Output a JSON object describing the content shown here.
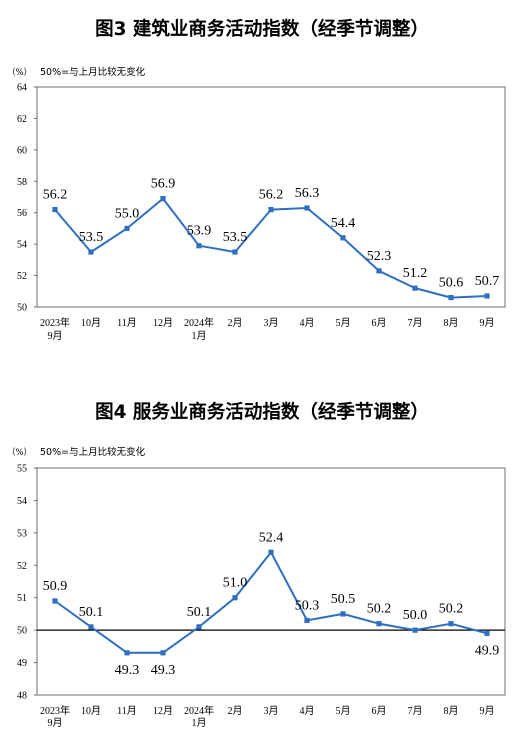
{
  "chart_data": [
    {
      "type": "line",
      "title": "图3 建筑业商务活动指数（经季节调整）",
      "ylabel": "（%）",
      "annotation": "50%=与上月比较无变化",
      "categories": [
        "2023年\n9月",
        "10月",
        "11月",
        "12月",
        "2024年\n1月",
        "2月",
        "3月",
        "4月",
        "5月",
        "6月",
        "7月",
        "8月",
        "9月"
      ],
      "values": [
        56.2,
        53.5,
        55.0,
        56.9,
        53.9,
        53.5,
        56.2,
        56.3,
        54.4,
        52.3,
        51.2,
        50.6,
        50.7
      ],
      "ylim": [
        50,
        64
      ],
      "yticks": [
        50,
        52,
        54,
        56,
        58,
        60,
        62,
        64
      ],
      "grid": false,
      "data_labels": true,
      "color": "#2E6FBF"
    },
    {
      "type": "line",
      "title": "图4 服务业商务活动指数（经季节调整）",
      "ylabel": "（%）",
      "annotation": "50%=与上月比较无变化",
      "categories": [
        "2023年\n9月",
        "10月",
        "11月",
        "12月",
        "2024年\n1月",
        "2月",
        "3月",
        "4月",
        "5月",
        "6月",
        "7月",
        "8月",
        "9月"
      ],
      "values": [
        50.9,
        50.1,
        49.3,
        49.3,
        50.1,
        51.0,
        52.4,
        50.3,
        50.5,
        50.2,
        50.0,
        50.2,
        49.9
      ],
      "ylim": [
        48,
        55
      ],
      "yticks": [
        48,
        49,
        50,
        51,
        52,
        53,
        54,
        55
      ],
      "reference_line": 50,
      "grid": false,
      "data_labels": true,
      "color": "#2E6FBF"
    }
  ]
}
